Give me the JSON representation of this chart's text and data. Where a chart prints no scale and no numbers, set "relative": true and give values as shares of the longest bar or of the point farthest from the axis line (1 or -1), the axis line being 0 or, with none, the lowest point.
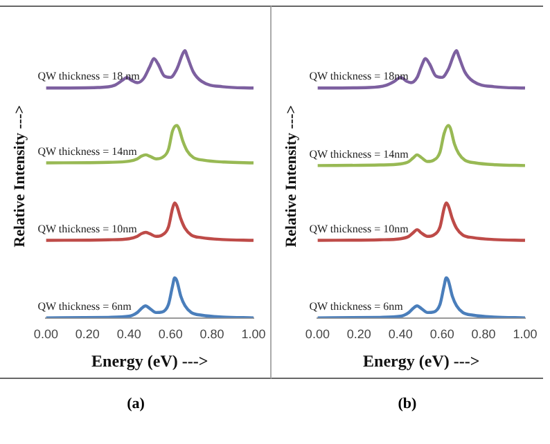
{
  "chart_data": [
    {
      "type": "line",
      "relative": true,
      "xlabel": "Energy (eV) --->",
      "ylabel": "Relative Intensity --->",
      "annotations": [
        "(a)"
      ],
      "xlim": [
        0,
        1
      ],
      "xticks": [
        {
          "value": 0,
          "label": "0.00"
        },
        {
          "value": 0.2,
          "label": "0.20"
        },
        {
          "value": 0.4,
          "label": "0.40"
        },
        {
          "value": 0.6,
          "label": "0.60"
        },
        {
          "value": 0.8,
          "label": "0.80"
        },
        {
          "value": 1,
          "label": "1.00"
        }
      ],
      "grid": false,
      "legend": false,
      "marker": "none",
      "line_style": "solid",
      "series": [
        {
          "name": "QW thickness = 6nm",
          "color": "#4a7ebb",
          "x": [
            0,
            0.3,
            0.4,
            0.44,
            0.46,
            0.48,
            0.5,
            0.53,
            0.56,
            0.59,
            0.61,
            0.62,
            0.63,
            0.65,
            0.67,
            0.7,
            0.75,
            0.85,
            1
          ],
          "values": [
            0,
            0.002,
            0.006,
            0.02,
            0.035,
            0.045,
            0.035,
            0.02,
            0.022,
            0.05,
            0.12,
            0.15,
            0.14,
            0.08,
            0.045,
            0.02,
            0.01,
            0.003,
            0
          ]
        },
        {
          "name": "QW thickness = 10nm",
          "color": "#be4b48",
          "x": [
            0,
            0.3,
            0.4,
            0.44,
            0.46,
            0.48,
            0.5,
            0.53,
            0.56,
            0.59,
            0.61,
            0.62,
            0.63,
            0.65,
            0.67,
            0.7,
            0.75,
            0.85,
            1
          ],
          "values": [
            0.29,
            0.292,
            0.296,
            0.305,
            0.315,
            0.32,
            0.315,
            0.305,
            0.31,
            0.34,
            0.41,
            0.43,
            0.42,
            0.37,
            0.335,
            0.31,
            0.3,
            0.293,
            0.29
          ]
        },
        {
          "name": "QW thickness = 14nm",
          "color": "#98b954",
          "x": [
            0,
            0.3,
            0.4,
            0.44,
            0.46,
            0.48,
            0.5,
            0.53,
            0.56,
            0.59,
            0.61,
            0.63,
            0.64,
            0.66,
            0.68,
            0.71,
            0.76,
            0.86,
            1
          ],
          "values": [
            0.58,
            0.582,
            0.586,
            0.595,
            0.605,
            0.61,
            0.605,
            0.595,
            0.6,
            0.63,
            0.7,
            0.72,
            0.71,
            0.66,
            0.625,
            0.6,
            0.59,
            0.583,
            0.58
          ]
        },
        {
          "name": "QW thickness = 18 nm",
          "color": "#7d60a0",
          "x": [
            0,
            0.25,
            0.33,
            0.37,
            0.39,
            0.41,
            0.44,
            0.47,
            0.5,
            0.52,
            0.54,
            0.57,
            0.6,
            0.63,
            0.66,
            0.67,
            0.68,
            0.71,
            0.75,
            0.85,
            1
          ],
          "values": [
            0.86,
            0.862,
            0.87,
            0.89,
            0.9,
            0.89,
            0.88,
            0.895,
            0.94,
            0.97,
            0.95,
            0.905,
            0.9,
            0.93,
            0.99,
            1,
            0.98,
            0.92,
            0.885,
            0.865,
            0.86
          ]
        }
      ]
    },
    {
      "type": "line",
      "relative": true,
      "xlabel": "Energy (eV) --->",
      "ylabel": "Relative Intensity --->",
      "annotations": [
        "(b)"
      ],
      "xlim": [
        0,
        1
      ],
      "xticks": [
        {
          "value": 0,
          "label": "0.00"
        },
        {
          "value": 0.2,
          "label": "0.20"
        },
        {
          "value": 0.4,
          "label": "0.40"
        },
        {
          "value": 0.6,
          "label": "0.60"
        },
        {
          "value": 0.8,
          "label": "0.80"
        },
        {
          "value": 1,
          "label": "1.00"
        }
      ],
      "grid": false,
      "legend": false,
      "marker": "none",
      "line_style": "solid",
      "series": [
        {
          "name": "QW thickness = 6nm",
          "color": "#4a7ebb",
          "x": [
            0,
            0.3,
            0.4,
            0.44,
            0.46,
            0.48,
            0.5,
            0.53,
            0.56,
            0.59,
            0.61,
            0.62,
            0.63,
            0.65,
            0.67,
            0.7,
            0.75,
            0.85,
            1
          ],
          "values": [
            0,
            0.002,
            0.006,
            0.02,
            0.035,
            0.045,
            0.035,
            0.02,
            0.022,
            0.05,
            0.12,
            0.15,
            0.14,
            0.08,
            0.045,
            0.02,
            0.01,
            0.003,
            0
          ]
        },
        {
          "name": "QW thickness = 10nm",
          "color": "#be4b48",
          "x": [
            0,
            0.3,
            0.4,
            0.44,
            0.46,
            0.48,
            0.5,
            0.53,
            0.56,
            0.59,
            0.61,
            0.62,
            0.63,
            0.65,
            0.67,
            0.7,
            0.75,
            0.85,
            1
          ],
          "values": [
            0.29,
            0.292,
            0.296,
            0.305,
            0.318,
            0.33,
            0.318,
            0.305,
            0.31,
            0.34,
            0.41,
            0.43,
            0.42,
            0.37,
            0.335,
            0.31,
            0.3,
            0.293,
            0.29
          ]
        },
        {
          "name": "QW thickness = 14nm",
          "color": "#98b954",
          "x": [
            0,
            0.3,
            0.4,
            0.44,
            0.46,
            0.48,
            0.5,
            0.53,
            0.56,
            0.59,
            0.61,
            0.63,
            0.64,
            0.66,
            0.68,
            0.71,
            0.76,
            0.86,
            1
          ],
          "values": [
            0.57,
            0.572,
            0.576,
            0.585,
            0.598,
            0.61,
            0.6,
            0.585,
            0.59,
            0.62,
            0.69,
            0.72,
            0.71,
            0.65,
            0.615,
            0.59,
            0.58,
            0.573,
            0.57
          ]
        },
        {
          "name": "QW thickness = 18nm",
          "color": "#7d60a0",
          "x": [
            0,
            0.25,
            0.33,
            0.37,
            0.4,
            0.43,
            0.45,
            0.48,
            0.5,
            0.52,
            0.54,
            0.57,
            0.6,
            0.63,
            0.66,
            0.67,
            0.68,
            0.71,
            0.75,
            0.85,
            1
          ],
          "values": [
            0.86,
            0.862,
            0.87,
            0.885,
            0.9,
            0.885,
            0.88,
            0.9,
            0.94,
            0.97,
            0.95,
            0.905,
            0.9,
            0.93,
            0.99,
            1,
            0.98,
            0.92,
            0.885,
            0.865,
            0.86
          ]
        }
      ]
    }
  ]
}
